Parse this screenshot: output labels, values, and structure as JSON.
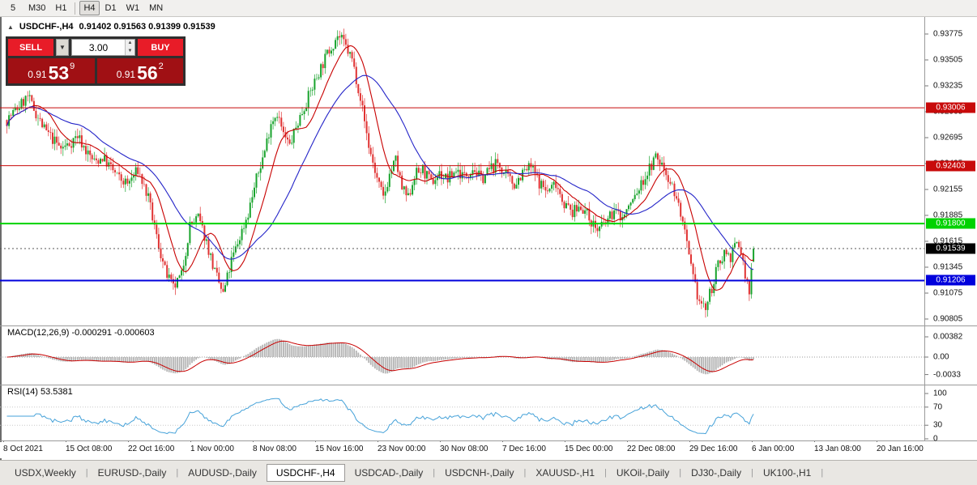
{
  "toolbar": {
    "timeframes": [
      "5",
      "M30",
      "H1",
      "H4",
      "D1",
      "W1",
      "MN"
    ],
    "active": "H4"
  },
  "chart": {
    "title": {
      "symbol": "USDCHF-,H4",
      "ohlc": "0.91402 0.91563 0.91399 0.91539"
    },
    "trade_panel": {
      "sell_label": "SELL",
      "buy_label": "BUY",
      "volume": "3.00",
      "sell_price": {
        "prefix": "0.91",
        "big": "53",
        "sup": "9"
      },
      "buy_price": {
        "prefix": "0.91",
        "big": "56",
        "sup": "2"
      }
    }
  },
  "chart_data": {
    "type": "candlestick",
    "symbol": "USDCHF-",
    "timeframe": "H4",
    "current_ohlc": {
      "open": 0.91402,
      "high": 0.91563,
      "low": 0.91399,
      "close": 0.91539
    },
    "n_candles": 360,
    "price_anchors": [
      [
        0,
        0.9288
      ],
      [
        5,
        0.93
      ],
      [
        10,
        0.9312
      ],
      [
        14,
        0.9295
      ],
      [
        18,
        0.9278
      ],
      [
        22,
        0.9268
      ],
      [
        26,
        0.9258
      ],
      [
        30,
        0.9263
      ],
      [
        34,
        0.9272
      ],
      [
        38,
        0.9256
      ],
      [
        42,
        0.9244
      ],
      [
        46,
        0.9249
      ],
      [
        50,
        0.9238
      ],
      [
        54,
        0.9227
      ],
      [
        58,
        0.9221
      ],
      [
        63,
        0.9236
      ],
      [
        68,
        0.9206
      ],
      [
        72,
        0.9166
      ],
      [
        76,
        0.9131
      ],
      [
        80,
        0.9112
      ],
      [
        84,
        0.9126
      ],
      [
        88,
        0.9178
      ],
      [
        92,
        0.9186
      ],
      [
        96,
        0.9161
      ],
      [
        100,
        0.9129
      ],
      [
        104,
        0.9106
      ],
      [
        108,
        0.9141
      ],
      [
        112,
        0.9166
      ],
      [
        116,
        0.9191
      ],
      [
        120,
        0.9226
      ],
      [
        124,
        0.9256
      ],
      [
        127,
        0.9286
      ],
      [
        130,
        0.9296
      ],
      [
        133,
        0.9272
      ],
      [
        136,
        0.9261
      ],
      [
        140,
        0.9286
      ],
      [
        145,
        0.9312
      ],
      [
        150,
        0.9338
      ],
      [
        155,
        0.9361
      ],
      [
        159,
        0.9376
      ],
      [
        162,
        0.9368
      ],
      [
        166,
        0.9351
      ],
      [
        170,
        0.9312
      ],
      [
        174,
        0.9261
      ],
      [
        178,
        0.9226
      ],
      [
        181,
        0.9206
      ],
      [
        184,
        0.9231
      ],
      [
        187,
        0.9246
      ],
      [
        190,
        0.9216
      ],
      [
        193,
        0.9206
      ],
      [
        196,
        0.9231
      ],
      [
        200,
        0.9236
      ],
      [
        204,
        0.9222
      ],
      [
        208,
        0.9232
      ],
      [
        212,
        0.9226
      ],
      [
        216,
        0.9236
      ],
      [
        220,
        0.9229
      ],
      [
        224,
        0.9239
      ],
      [
        228,
        0.9226
      ],
      [
        232,
        0.9236
      ],
      [
        236,
        0.9243
      ],
      [
        240,
        0.9229
      ],
      [
        244,
        0.9221
      ],
      [
        248,
        0.9233
      ],
      [
        252,
        0.9239
      ],
      [
        256,
        0.9223
      ],
      [
        260,
        0.9213
      ],
      [
        264,
        0.9223
      ],
      [
        268,
        0.9201
      ],
      [
        272,
        0.9191
      ],
      [
        276,
        0.9199
      ],
      [
        280,
        0.9186
      ],
      [
        284,
        0.9173
      ],
      [
        288,
        0.9181
      ],
      [
        292,
        0.9193
      ],
      [
        296,
        0.9186
      ],
      [
        300,
        0.9201
      ],
      [
        304,
        0.9216
      ],
      [
        308,
        0.9233
      ],
      [
        312,
        0.9249
      ],
      [
        315,
        0.9241
      ],
      [
        318,
        0.9229
      ],
      [
        321,
        0.9213
      ],
      [
        324,
        0.9191
      ],
      [
        327,
        0.9156
      ],
      [
        330,
        0.9121
      ],
      [
        333,
        0.9099
      ],
      [
        336,
        0.9091
      ],
      [
        339,
        0.9113
      ],
      [
        342,
        0.9136
      ],
      [
        345,
        0.9151
      ],
      [
        348,
        0.9146
      ],
      [
        351,
        0.9159
      ],
      [
        353,
        0.9151
      ],
      [
        355,
        0.9125
      ],
      [
        357,
        0.9107
      ],
      [
        358,
        0.9131
      ],
      [
        359,
        0.914
      ]
    ],
    "levels": [
      {
        "price": 0.93006,
        "label": "0.93006",
        "color": "#c80a0a",
        "text_color": "#ffffff",
        "width": 1
      },
      {
        "price": 0.92403,
        "label": "0.92403",
        "color": "#c80a0a",
        "text_color": "#ffffff",
        "width": 1
      },
      {
        "price": 0.918,
        "label": "0.91800",
        "color": "#00d200",
        "text_color": "#ffffff",
        "width": 2
      },
      {
        "price": 0.91206,
        "label": "0.91206",
        "color": "#0000dc",
        "text_color": "#ffffff",
        "width": 2
      }
    ],
    "current_price": {
      "value": 0.91539,
      "label": "0.91539",
      "bg": "#000000",
      "text_color": "#ffffff"
    },
    "y_axis_ticks": [
      "0.93775",
      "0.93505",
      "0.93235",
      "0.92965",
      "0.92695",
      "0.92425",
      "0.92155",
      "0.91885",
      "0.91615",
      "0.91345",
      "0.91075",
      "0.90805"
    ],
    "x_axis_labels": [
      "8 Oct 2021",
      "15 Oct 08:00",
      "22 Oct 16:00",
      "1 Nov 00:00",
      "8 Nov 08:00",
      "15 Nov 16:00",
      "23 Nov 00:00",
      "30 Nov 08:00",
      "7 Dec 16:00",
      "15 Dec 00:00",
      "22 Dec 08:00",
      "29 Dec 16:00",
      "6 Jan 00:00",
      "13 Jan 08:00",
      "20 Jan 16:00"
    ],
    "indicators": {
      "macd": {
        "label": "MACD(12,26,9) -0.000291 -0.000603",
        "fast": 12,
        "slow": 26,
        "signal": 9,
        "values_current": [
          -0.000291,
          -0.000603
        ],
        "ticks": [
          "0.00382",
          "0.00",
          "-0.0033"
        ]
      },
      "rsi": {
        "label": "RSI(14) 53.5381",
        "period": 14,
        "value": 53.5381,
        "ticks": [
          "100",
          "70",
          "30",
          "0"
        ],
        "levels": [
          70,
          30
        ]
      }
    },
    "colors": {
      "bull": "#18a32c",
      "bear": "#e03232",
      "ma_fast": "#c80000",
      "ma_slow": "#2424c8",
      "macd_hist": "#b4b4b4",
      "macd_signal": "#c80000",
      "rsi_line": "#46a2d9"
    }
  },
  "tabs": {
    "items": [
      "USDX,Weekly",
      "EURUSD-,Daily",
      "AUDUSD-,Daily",
      "USDCHF-,H4",
      "USDCAD-,Daily",
      "USDCNH-,Daily",
      "XAUUSD-,H1",
      "UKOil-,Daily",
      "DJ30-,Daily",
      "UK100-,H1"
    ],
    "active_index": 3
  }
}
